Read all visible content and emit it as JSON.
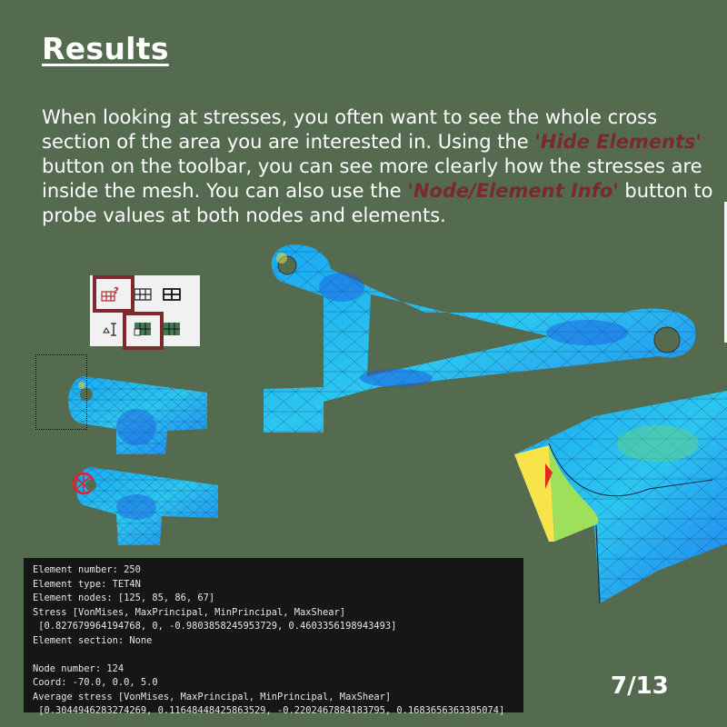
{
  "slide": {
    "title": "Results",
    "paragraph": {
      "part1": "When looking at stresses, you often want to see the whole cross section of the area you are interested in. Using the ",
      "hide_elements": "'Hide Elements'",
      "part2": " button on the toolbar, you can see more clearly how the stresses are inside the mesh. You can also use the ",
      "node_info": "'Node/Element Info'",
      "part3": " button to probe values at both nodes and elements."
    },
    "page_indicator": "7/13"
  },
  "toolbar": {
    "row1_icons": [
      "node-element-info-icon",
      "mesh-grid-icon",
      "mesh-grid-bold-icon"
    ],
    "row2_icons": [
      "text-cursor-icon",
      "hide-elements-icon",
      "shaded-mesh-icon"
    ]
  },
  "console": {
    "lines": [
      "Element number: 250",
      "Element type: TET4N",
      "Element nodes: [125, 85, 86, 67]",
      "Stress [VonMises, MaxPrincipal, MinPrincipal, MaxShear]",
      " [0.827679964194768, 0, -0.9803858245953729, 0.4603356198943493]",
      "Element section: None",
      "",
      "Node number: 124",
      "Coord: -70.0, 0.0, 5.0",
      "Average stress [VonMises, MaxPrincipal, MinPrincipal, MaxShear]",
      " [0.3044946283274269, 0.11648448425863529, -0.2202467884183795, 0.1683656363385074]"
    ]
  },
  "colors": {
    "background": "#546b50",
    "highlight": "#7a2a2a",
    "mesh_blue": "#1f7cf0",
    "mesh_cyan": "#2fc7f0",
    "console_bg": "#161616"
  }
}
